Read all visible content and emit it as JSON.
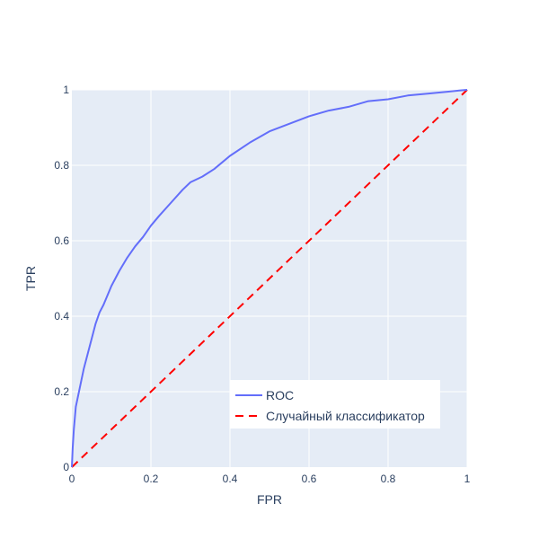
{
  "chart_data": {
    "type": "line",
    "title": "",
    "xlabel": "FPR",
    "ylabel": "TPR",
    "xlim": [
      0,
      1
    ],
    "ylim": [
      0,
      1
    ],
    "x_ticks": [
      "0",
      "0.2",
      "0.4",
      "0.6",
      "0.8",
      "1"
    ],
    "y_ticks": [
      "0",
      "0.2",
      "0.4",
      "0.6",
      "0.8",
      "1"
    ],
    "grid": true,
    "legend_position": "bottom-right",
    "series": [
      {
        "name": "ROC",
        "color": "#636efa",
        "dash": "solid",
        "x": [
          0,
          0.002,
          0.005,
          0.01,
          0.02,
          0.03,
          0.04,
          0.05,
          0.06,
          0.07,
          0.08,
          0.1,
          0.12,
          0.14,
          0.16,
          0.18,
          0.2,
          0.22,
          0.25,
          0.28,
          0.3,
          0.33,
          0.36,
          0.4,
          0.45,
          0.5,
          0.55,
          0.6,
          0.65,
          0.7,
          0.75,
          0.8,
          0.85,
          0.9,
          0.95,
          0.98,
          1
        ],
        "y": [
          0,
          0.05,
          0.1,
          0.16,
          0.21,
          0.26,
          0.3,
          0.34,
          0.38,
          0.41,
          0.43,
          0.48,
          0.52,
          0.555,
          0.585,
          0.61,
          0.64,
          0.665,
          0.7,
          0.735,
          0.755,
          0.77,
          0.79,
          0.825,
          0.86,
          0.89,
          0.91,
          0.93,
          0.945,
          0.955,
          0.97,
          0.975,
          0.985,
          0.99,
          0.995,
          0.998,
          1
        ]
      },
      {
        "name": "Случайный классификатор",
        "color": "#ff0000",
        "dash": "dash",
        "x": [
          0,
          1
        ],
        "y": [
          0,
          1
        ]
      }
    ]
  }
}
